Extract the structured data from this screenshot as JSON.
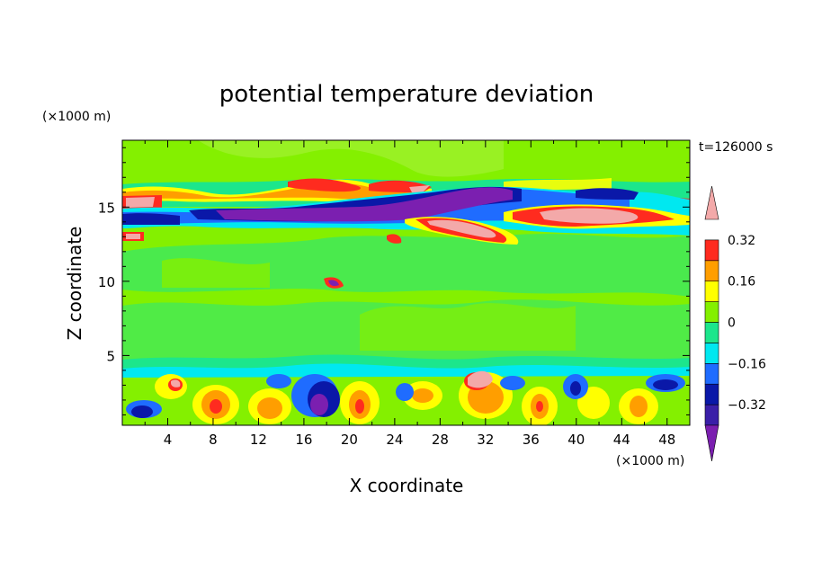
{
  "chart_data": {
    "type": "heatmap",
    "title": "potential temperature deviation",
    "xlabel": "X coordinate",
    "ylabel": "Z coordinate",
    "x_unit": "(×1000 m)",
    "y_unit": "(×1000 m)",
    "time_label": "t=126000 s",
    "xlim": [
      0,
      50
    ],
    "ylim": [
      0.3,
      19.5
    ],
    "x_ticks": [
      4,
      8,
      12,
      16,
      20,
      24,
      28,
      32,
      36,
      40,
      44,
      48
    ],
    "y_ticks": [
      5,
      10,
      15
    ],
    "colorbar": {
      "levels": [
        -0.4,
        -0.32,
        -0.24,
        -0.16,
        -0.08,
        0,
        0.08,
        0.16,
        0.24,
        0.32,
        0.4
      ],
      "tick_labels": [
        "0.32",
        "0.16",
        "0",
        "−0.16",
        "−0.32"
      ],
      "tick_values": [
        0.32,
        0.16,
        0,
        -0.16,
        -0.32
      ],
      "colors_bottom_to_top": [
        "#7b1fb0",
        "#3a1fa8",
        "#0a18a8",
        "#1f6cff",
        "#00e8f0",
        "#1ce68c",
        "#84f000",
        "#ffff00",
        "#ff9e00",
        "#ff2b1f",
        "#f3a9a9"
      ],
      "extend": "both"
    },
    "features": [
      {
        "kind": "band",
        "z": 15.2,
        "x_range": [
          0,
          50
        ],
        "value_range": [
          -0.4,
          0.4
        ],
        "desc_values": [
          0.1,
          -0.2,
          0.3
        ]
      },
      {
        "kind": "band",
        "z": 2.5,
        "x_range": [
          0,
          50
        ],
        "value_range": [
          -0.4,
          0.4
        ]
      },
      {
        "kind": "background",
        "value": 0.04
      }
    ]
  }
}
